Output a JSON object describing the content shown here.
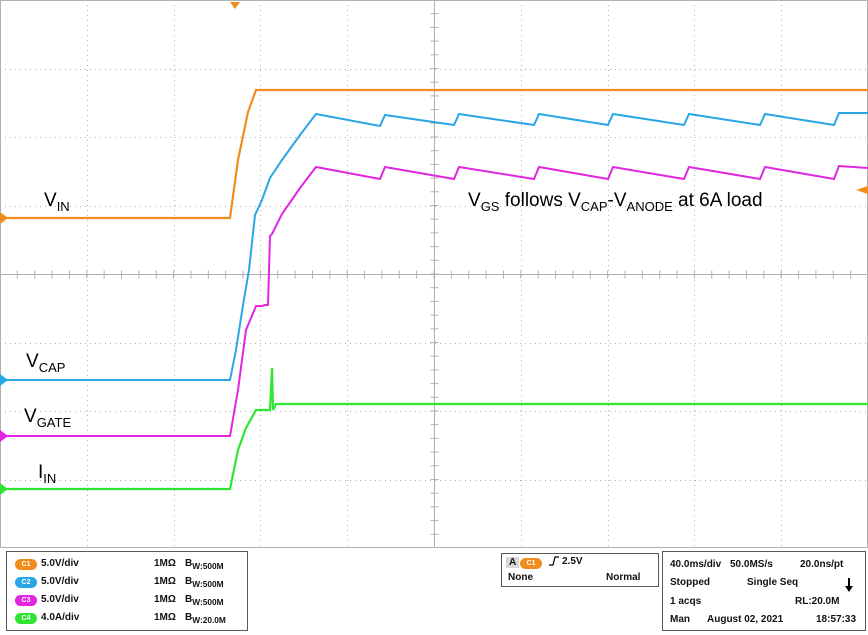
{
  "colors": {
    "grid": "#b0b0b0",
    "ch1": "#f28c1e",
    "ch2": "#2aa6e6",
    "ch3": "#e026e0",
    "ch4": "#2ee632"
  },
  "waveform_labels": {
    "vin": {
      "main": "V",
      "sub": "IN"
    },
    "vcap": {
      "main": "V",
      "sub": "CAP"
    },
    "vgate": {
      "main": "V",
      "sub": "GATE"
    },
    "iin": {
      "main": "I",
      "sub": "IN"
    },
    "annotation": {
      "p1": "V",
      "s1": "GS",
      "p2": " follows V",
      "s2": "CAP",
      "p3": "-V",
      "s3": "ANODE",
      "p4": " at 6A load"
    }
  },
  "channels": [
    {
      "badge": "C1",
      "scale": "5.0V/div",
      "impedance": "1MΩ",
      "bw": "W:500M",
      "color": "#f28c1e"
    },
    {
      "badge": "C2",
      "scale": "5.0V/div",
      "impedance": "1MΩ",
      "bw": "W:500M",
      "color": "#2aa6e6"
    },
    {
      "badge": "C3",
      "scale": "5.0V/div",
      "impedance": "1MΩ",
      "bw": "W:500M",
      "color": "#e026e0"
    },
    {
      "badge": "C4",
      "scale": "4.0A/div",
      "impedance": "1MΩ",
      "bw": "W:20.0M",
      "color": "#2ee632"
    }
  ],
  "bw_prefix": "B",
  "trigger": {
    "mode_letter": "A",
    "source_badge": "C1",
    "level": "2.5V",
    "coupling": "None",
    "sweep": "Normal"
  },
  "acquisition": {
    "timebase": "40.0ms/div",
    "sample_rate": "50.0MS/s",
    "resolution": "20.0ns/pt",
    "state": "Stopped",
    "mode": "Single Seq",
    "acqs": "1 acqs",
    "record_length": "RL:20.0M",
    "trigger_mode": "Man",
    "date": "August 02, 2021",
    "time": "18:57:33"
  }
}
